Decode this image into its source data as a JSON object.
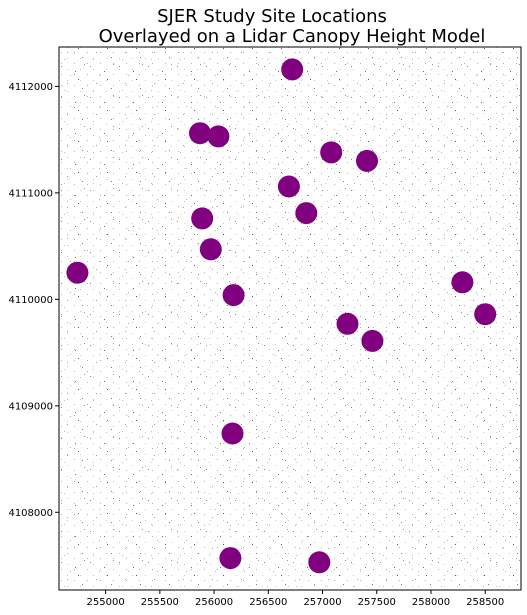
{
  "chart_data": {
    "type": "scatter",
    "title_line1": "SJER Study Site Locations",
    "title_line2": "Overlayed on a Lidar Canopy Height Model",
    "xlabel": "",
    "ylabel": "",
    "xlim": [
      254570,
      258830
    ],
    "ylim": [
      4107270,
      4112370
    ],
    "x_ticks": [
      255000,
      255500,
      256000,
      256500,
      257000,
      257500,
      258000,
      258500
    ],
    "y_ticks": [
      4108000,
      4109000,
      4110000,
      4111000,
      4112000
    ],
    "grid": false,
    "marker_color": "#800080",
    "points": [
      {
        "x": 256720,
        "y": 4112160
      },
      {
        "x": 255870,
        "y": 4111560
      },
      {
        "x": 256040,
        "y": 4111530
      },
      {
        "x": 257080,
        "y": 4111380
      },
      {
        "x": 257410,
        "y": 4111300
      },
      {
        "x": 256690,
        "y": 4111060
      },
      {
        "x": 255890,
        "y": 4110760
      },
      {
        "x": 256850,
        "y": 4110810
      },
      {
        "x": 255970,
        "y": 4110470
      },
      {
        "x": 254740,
        "y": 4110250
      },
      {
        "x": 256180,
        "y": 4110040
      },
      {
        "x": 258290,
        "y": 4110160
      },
      {
        "x": 258500,
        "y": 4109860
      },
      {
        "x": 257230,
        "y": 4109770
      },
      {
        "x": 257460,
        "y": 4109610
      },
      {
        "x": 256170,
        "y": 4108740
      },
      {
        "x": 256150,
        "y": 4107570
      },
      {
        "x": 256970,
        "y": 4107530
      }
    ]
  }
}
